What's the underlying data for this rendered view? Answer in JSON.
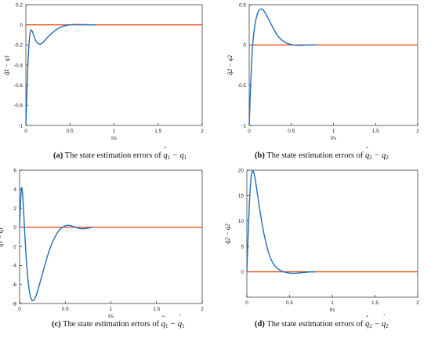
{
  "colors": {
    "error_line": "#1f6fb5",
    "zero_line": "#e2531f",
    "axis": "#000000"
  },
  "chart_data": [
    {
      "type": "line",
      "panel": "a",
      "ylabel": "q̂1 − q1",
      "xlabel": "t/s",
      "caption": {
        "letter": "(a)",
        "text": "The state estimation errors of q̂1 − q1"
      },
      "xlim": [
        0,
        2
      ],
      "ylim": [
        -1,
        0.2
      ],
      "xticks": [
        "0",
        "0.5",
        "1",
        "1.5",
        "2"
      ],
      "yticks": [
        "-1",
        "-0.8",
        "-0.6",
        "-0.4",
        "-0.2",
        "0",
        "0.2"
      ],
      "series": [
        {
          "x": [
            0,
            0.01,
            0.02,
            0.03,
            0.04,
            0.05,
            0.06,
            0.07,
            0.08,
            0.1,
            0.12,
            0.15,
            0.17,
            0.2,
            0.25,
            0.3,
            0.35,
            0.4,
            0.45,
            0.5,
            0.55,
            0.6,
            0.65,
            0.7,
            0.75,
            0.8
          ],
          "y": [
            -1,
            -0.72,
            -0.46,
            -0.27,
            -0.14,
            -0.07,
            -0.05,
            -0.06,
            -0.08,
            -0.13,
            -0.17,
            -0.19,
            -0.19,
            -0.17,
            -0.12,
            -0.08,
            -0.045,
            -0.02,
            -0.008,
            0.0,
            0.003,
            0.004,
            0.002,
            0.001,
            0.0,
            0.0
          ]
        },
        {
          "x": [
            0,
            2
          ],
          "y": [
            0,
            0
          ]
        }
      ]
    },
    {
      "type": "line",
      "panel": "b",
      "ylabel": "q̂2 − q2",
      "xlabel": "t/s",
      "caption": {
        "letter": "(b)",
        "text": "The state estimation errors of q̂2 − q2"
      },
      "xlim": [
        0,
        2
      ],
      "ylim": [
        -1,
        0.5
      ],
      "xticks": [
        "0",
        "0.5",
        "1",
        "1.5",
        "2"
      ],
      "yticks": [
        "-1",
        "-0.5",
        "0",
        "0.5"
      ],
      "series": [
        {
          "x": [
            0,
            0.01,
            0.02,
            0.03,
            0.04,
            0.05,
            0.07,
            0.09,
            0.11,
            0.13,
            0.15,
            0.17,
            0.2,
            0.25,
            0.3,
            0.35,
            0.4,
            0.45,
            0.5,
            0.55,
            0.6,
            0.65,
            0.7,
            0.8
          ],
          "y": [
            -1,
            -0.7,
            -0.42,
            -0.2,
            -0.02,
            0.1,
            0.26,
            0.36,
            0.42,
            0.445,
            0.445,
            0.43,
            0.38,
            0.28,
            0.18,
            0.1,
            0.05,
            0.02,
            0.005,
            -0.002,
            -0.004,
            -0.002,
            0.0,
            0.0
          ]
        },
        {
          "x": [
            0,
            2
          ],
          "y": [
            0,
            0
          ]
        }
      ]
    },
    {
      "type": "line",
      "panel": "c",
      "ylabel": "q̇̂1 − q̇1",
      "xlabel": "t/s",
      "caption": {
        "letter": "(c)",
        "text": "The state estimation errors of q̂̇1 − q̇1"
      },
      "xlim": [
        0,
        2
      ],
      "ylim": [
        -8,
        6
      ],
      "xticks": [
        "0",
        "0.5",
        "1",
        "1.5",
        "2"
      ],
      "yticks": [
        "-8",
        "-6",
        "-4",
        "-2",
        "0",
        "2",
        "4",
        "6"
      ],
      "series": [
        {
          "x": [
            0,
            0.01,
            0.02,
            0.03,
            0.04,
            0.05,
            0.06,
            0.07,
            0.08,
            0.1,
            0.12,
            0.14,
            0.16,
            0.18,
            0.2,
            0.25,
            0.3,
            0.35,
            0.4,
            0.45,
            0.5,
            0.55,
            0.6,
            0.65,
            0.7,
            0.75,
            0.8
          ],
          "y": [
            0,
            2.6,
            4.1,
            3.8,
            2.4,
            0.6,
            -1.2,
            -2.8,
            -4.2,
            -6.2,
            -7.3,
            -7.7,
            -7.6,
            -7.2,
            -6.6,
            -4.9,
            -3.2,
            -1.8,
            -0.8,
            -0.15,
            0.15,
            0.2,
            0.05,
            -0.1,
            -0.15,
            -0.08,
            0.0
          ]
        },
        {
          "x": [
            0,
            2
          ],
          "y": [
            0,
            0
          ]
        }
      ]
    },
    {
      "type": "line",
      "panel": "d",
      "ylabel": "q̇̂2 − q̇2",
      "xlabel": "t/s",
      "caption": {
        "letter": "(d)",
        "text": "The state estimation errors of q̂̇2 − q̇2"
      },
      "xlim": [
        0,
        2
      ],
      "ylim": [
        -5,
        20
      ],
      "xticks": [
        "0",
        "0.5",
        "1",
        "1.5",
        "2"
      ],
      "yticks": [
        "0",
        "5",
        "10",
        "15",
        "20"
      ],
      "series": [
        {
          "x": [
            0,
            0.01,
            0.02,
            0.03,
            0.04,
            0.05,
            0.06,
            0.07,
            0.08,
            0.09,
            0.1,
            0.12,
            0.14,
            0.16,
            0.18,
            0.2,
            0.25,
            0.3,
            0.35,
            0.4,
            0.45,
            0.5,
            0.55,
            0.6,
            0.65,
            0.7,
            0.75,
            0.8
          ],
          "y": [
            0,
            4.8,
            9.5,
            13.5,
            16.6,
            18.6,
            19.6,
            19.9,
            19.6,
            18.9,
            18.0,
            15.8,
            13.5,
            11.3,
            9.3,
            7.5,
            4.0,
            1.9,
            0.8,
            0.2,
            -0.1,
            -0.25,
            -0.3,
            -0.25,
            -0.15,
            -0.07,
            -0.02,
            0.0
          ]
        },
        {
          "x": [
            0,
            2
          ],
          "y": [
            0,
            0
          ]
        }
      ]
    }
  ]
}
